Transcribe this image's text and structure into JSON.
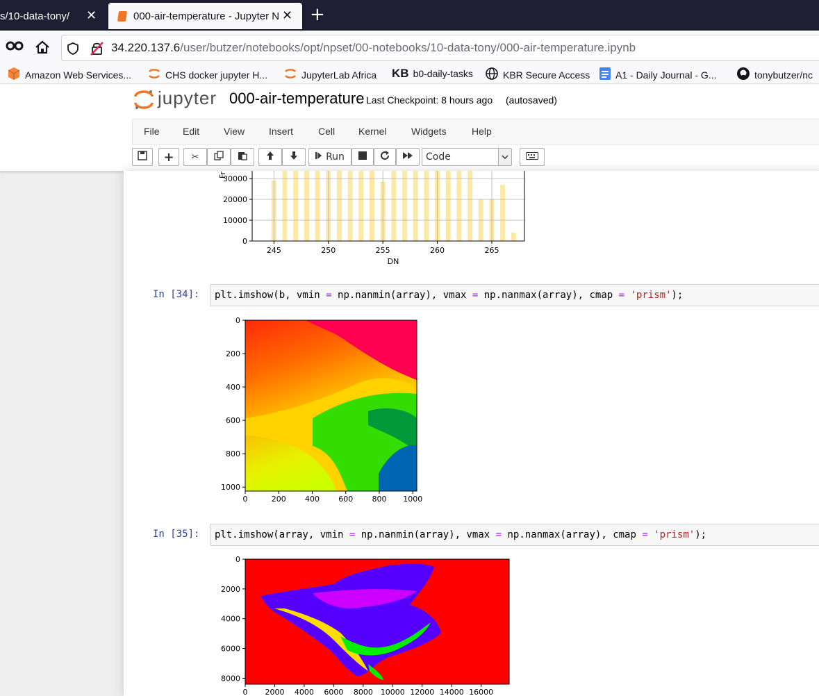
{
  "browser": {
    "tabs": [
      {
        "title": "s/10-data-tony/",
        "active": false
      },
      {
        "title": "000-air-temperature - Jupyter N",
        "active": true
      }
    ],
    "new_tab_label": "+",
    "url_host": "34.220.137.6",
    "url_path": "/user/butzer/notebooks/opt/npset/00-notebooks/10-data-tony/000-air-temperature.ipynb",
    "bookmarks": [
      {
        "label": "Amazon Web Services...",
        "icon": "aws-cube-icon"
      },
      {
        "label": "CHS docker jupyter H...",
        "icon": "jupyter-icon"
      },
      {
        "label": "JupyterLab Africa",
        "icon": "jupyter-icon"
      },
      {
        "label": "b0-daily-tasks",
        "icon": "kb-icon",
        "icon_text": "KB"
      },
      {
        "label": "KBR Secure Access",
        "icon": "globe-icon"
      },
      {
        "label": "A1 - Daily Journal - G...",
        "icon": "docs-icon"
      },
      {
        "label": "tonybutzer/nc",
        "icon": "github-icon"
      }
    ]
  },
  "jupyter": {
    "logo_text": "jupyter",
    "notebook_name": "000-air-temperature",
    "checkpoint": "Last Checkpoint: 8 hours ago",
    "autosave": "(autosaved)",
    "menus": [
      "File",
      "Edit",
      "View",
      "Insert",
      "Cell",
      "Kernel",
      "Widgets",
      "Help"
    ],
    "toolbar": {
      "run_label": "Run",
      "cell_type": "Code"
    }
  },
  "cells": [
    {
      "prompt": "In [34]:",
      "code": {
        "p1": "plt.imshow(b, vmin ",
        "o1": "=",
        "p2": " np.nanmin(array), vmax ",
        "o2": "=",
        "p3": " np.nanmax(array), cmap ",
        "o3": "=",
        "s": " 'prism'",
        "end": ");"
      }
    },
    {
      "prompt": "In [35]:",
      "code": {
        "p1": "plt.imshow(array, vmin ",
        "o1": "=",
        "p2": " np.nanmin(array), vmax ",
        "o2": "=",
        "p3": " np.nanmax(array), cmap ",
        "o3": "=",
        "s": " 'prism'",
        "end": ");"
      }
    }
  ],
  "chart_data": [
    {
      "type": "bar",
      "xlabel": "DN",
      "ylabel": "Fr",
      "x_ticks": [
        245,
        250,
        255,
        260,
        265
      ],
      "y_ticks": [
        0,
        10000,
        20000,
        30000
      ],
      "xlim": [
        243,
        268
      ],
      "ylim_visible": [
        0,
        37000
      ],
      "bar_color": "#fde9a6",
      "grid": true,
      "bars": [
        {
          "x": 245,
          "value": 29000
        },
        {
          "x": 246,
          "value": 40000
        },
        {
          "x": 247,
          "value": 40000
        },
        {
          "x": 248,
          "value": 40000
        },
        {
          "x": 249,
          "value": 40000
        },
        {
          "x": 250,
          "value": 40000
        },
        {
          "x": 251,
          "value": 40000
        },
        {
          "x": 252,
          "value": 40000
        },
        {
          "x": 253,
          "value": 40000
        },
        {
          "x": 254,
          "value": 40000
        },
        {
          "x": 255,
          "value": 28500
        },
        {
          "x": 256,
          "value": 40000
        },
        {
          "x": 257,
          "value": 40000
        },
        {
          "x": 258,
          "value": 40000
        },
        {
          "x": 259,
          "value": 40000
        },
        {
          "x": 260,
          "value": 40000
        },
        {
          "x": 261,
          "value": 40000
        },
        {
          "x": 262,
          "value": 40000
        },
        {
          "x": 263,
          "value": 40000
        },
        {
          "x": 264,
          "value": 20000
        },
        {
          "x": 265,
          "value": 20000
        },
        {
          "x": 266,
          "value": 27000
        },
        {
          "x": 267,
          "value": 4000
        }
      ]
    },
    {
      "type": "heatmap",
      "colormap": "prism",
      "x_ticks": [
        0,
        200,
        400,
        600,
        800,
        1000
      ],
      "y_ticks": [
        0,
        200,
        400,
        600,
        800,
        1000
      ],
      "xlim": [
        0,
        1024
      ],
      "ylim": [
        0,
        1024
      ]
    },
    {
      "type": "heatmap",
      "colormap": "prism",
      "x_ticks": [
        0,
        2000,
        4000,
        6000,
        8000,
        10000,
        12000,
        14000,
        16000
      ],
      "y_ticks": [
        0,
        2000,
        4000,
        6000,
        8000
      ],
      "xlim": [
        0,
        17900
      ],
      "ylim": [
        0,
        8400
      ]
    }
  ]
}
